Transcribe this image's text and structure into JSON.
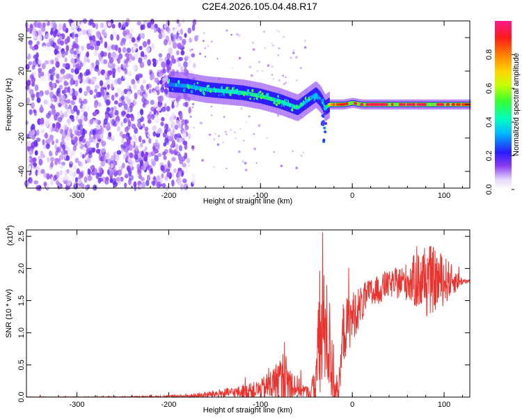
{
  "title": "C2E4.2026.105.04.48.R17",
  "chart_data": [
    {
      "type": "heatmap",
      "name": "spectrogram",
      "xlabel": "Height of straight line (km)",
      "ylabel": "Frequency (Hz)",
      "xlim": [
        -355,
        128
      ],
      "ylim": [
        -50,
        50
      ],
      "xticks": [
        -300,
        -200,
        -100,
        0,
        100
      ],
      "yticks": [
        -40,
        -20,
        0,
        20,
        40
      ],
      "xtick_labels": [
        "-300",
        "-200",
        "-100",
        "0",
        "100"
      ],
      "ytick_labels": [
        "-40",
        "-20",
        "0",
        "20",
        "40"
      ],
      "noise_region": {
        "x": [
          -355,
          -180
        ],
        "y": [
          -50,
          50
        ],
        "amplitude_range": [
          0.0,
          0.2
        ]
      },
      "signal_track": {
        "x": [
          -200,
          -180,
          -160,
          -140,
          -120,
          -100,
          -80,
          -60,
          -50,
          -40,
          -35,
          -30,
          -25,
          -20,
          -10,
          0,
          10,
          20,
          50,
          80,
          100,
          128
        ],
        "y": [
          12,
          11,
          9,
          8,
          7,
          5,
          2,
          -2,
          2,
          6,
          3,
          -2,
          0,
          0,
          0,
          1,
          0,
          0,
          0,
          0,
          0,
          0
        ],
        "amplitude": [
          0.35,
          0.4,
          0.45,
          0.5,
          0.55,
          0.6,
          0.55,
          0.5,
          0.4,
          0.45,
          0.3,
          0.5,
          0.7,
          0.85,
          0.9,
          0.95,
          0.95,
          0.95,
          0.95,
          0.95,
          0.95,
          0.85
        ]
      },
      "colorbar": {
        "label": "Normalized spectral amplitude",
        "range": [
          0,
          1
        ],
        "ticks": [
          0.0,
          0.2,
          0.4,
          0.6,
          0.8
        ],
        "tick_labels": [
          "0.0",
          "0.2",
          "0.4",
          "0.6",
          "0.8"
        ]
      }
    },
    {
      "type": "line",
      "name": "snr",
      "xlabel": "Height of straight line (km)",
      "ylabel": "SNR (10 * v/v)",
      "scale_label": "(x10",
      "scale_exponent": "4",
      "scale_close": ")",
      "xlim": [
        -355,
        128
      ],
      "ylim": [
        0,
        2.6
      ],
      "xticks": [
        -300,
        -200,
        -100,
        0,
        100
      ],
      "yticks": [
        0.0,
        0.5,
        1.0,
        1.5,
        2.0,
        2.5
      ],
      "xtick_labels": [
        "-300",
        "-200",
        "-100",
        "0",
        "100"
      ],
      "ytick_labels": [
        "0.0",
        "0.5",
        "1.0",
        "1.5",
        "2.0",
        "2.5"
      ],
      "color": "#e8332e",
      "envelope": {
        "x": [
          -355,
          -250,
          -200,
          -170,
          -150,
          -120,
          -100,
          -85,
          -75,
          -65,
          -55,
          -45,
          -40,
          -35,
          -30,
          -25,
          -20,
          -15,
          -10,
          0,
          10,
          20,
          40,
          60,
          80,
          100,
          120,
          128
        ],
        "baseline": [
          0.0,
          0.0,
          0.01,
          0.02,
          0.05,
          0.08,
          0.12,
          0.2,
          0.25,
          0.2,
          0.12,
          0.05,
          0.3,
          0.8,
          1.1,
          0.8,
          0.3,
          0.0,
          1.0,
          1.25,
          1.45,
          1.6,
          1.75,
          1.8,
          1.82,
          1.82,
          1.8,
          1.8
        ],
        "spread": [
          0.005,
          0.01,
          0.02,
          0.04,
          0.06,
          0.1,
          0.15,
          0.3,
          0.5,
          0.25,
          0.12,
          0.08,
          0.6,
          1.0,
          0.9,
          0.8,
          0.6,
          0.05,
          0.5,
          0.4,
          0.3,
          0.25,
          0.2,
          0.3,
          0.6,
          0.4,
          0.05,
          0.03
        ]
      }
    }
  ],
  "colors": {
    "snr_line": "#e8332e",
    "frame": "#000000"
  }
}
